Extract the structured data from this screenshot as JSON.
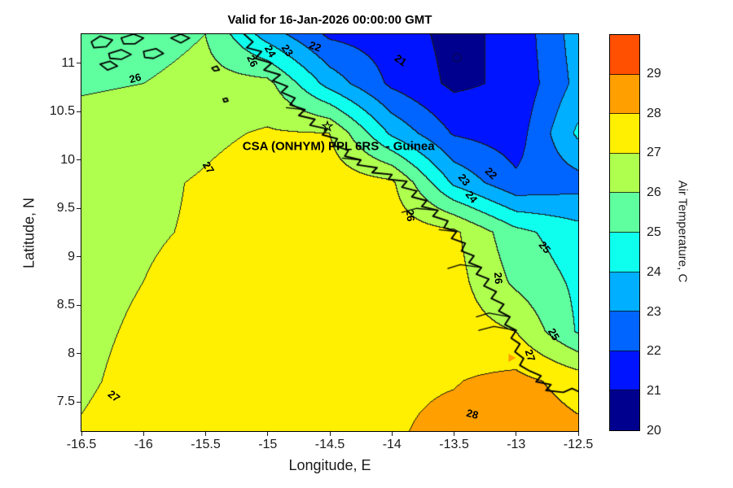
{
  "chart_data": {
    "type": "heatmap",
    "style": "filled_contour_map",
    "title": "Valid for 16-Jan-2026 00:00:00 GMT",
    "xlabel": "Longitude, E",
    "ylabel": "Latitude, N",
    "colorbar_label": "Air Temperature, C",
    "xlim": [
      -16.5,
      -12.5
    ],
    "ylim": [
      7.2,
      11.3
    ],
    "x_ticks": [
      -16.5,
      -16,
      -15.5,
      -15,
      -14.5,
      -14,
      -13.5,
      -13,
      -12.5
    ],
    "y_ticks": [
      7.5,
      8,
      8.5,
      9,
      9.5,
      10,
      10.5,
      11
    ],
    "levels": {
      "min": 20,
      "max": 30,
      "step": 1
    },
    "colorbar_ticks": [
      20,
      21,
      22,
      23,
      24,
      25,
      26,
      27,
      28,
      29
    ],
    "band_colors": [
      "#00008F",
      "#0014FF",
      "#0064FF",
      "#00AFFF",
      "#0FFFEF",
      "#5FFF9F",
      "#AFFF4F",
      "#FFEF00",
      "#FF9F00",
      "#FF4F00"
    ],
    "contour_line_color": "#1a1a1a",
    "grid": {
      "lons": [
        -16.5,
        -16.0,
        -15.5,
        -15.0,
        -14.5,
        -14.0,
        -13.5,
        -13.0,
        -12.5
      ],
      "lats": [
        11.3,
        10.7875,
        10.275,
        9.7625,
        9.25,
        8.7375,
        8.225,
        7.7125,
        7.2
      ],
      "values": [
        [
          25.5,
          25.5,
          26.0,
          23.5,
          21.8,
          21.5,
          20.7,
          21.3,
          23.5
        ],
        [
          25.9,
          26.0,
          26.4,
          26.3,
          23.6,
          21.8,
          20.8,
          21.2,
          23.3
        ],
        [
          26.3,
          26.4,
          26.8,
          27.1,
          27.0,
          23.8,
          21.9,
          21.5,
          24.2
        ],
        [
          26.6,
          26.8,
          27.1,
          27.5,
          27.6,
          27.2,
          23.8,
          22.2,
          22.6
        ],
        [
          26.7,
          26.9,
          27.1,
          27.5,
          27.7,
          27.6,
          27.2,
          25.3,
          24.4
        ],
        [
          26.8,
          27.0,
          27.3,
          27.6,
          27.7,
          27.6,
          27.4,
          25.8,
          24.8
        ],
        [
          26.85,
          27.1,
          27.4,
          27.6,
          27.7,
          27.7,
          27.5,
          27.0,
          24.9
        ],
        [
          26.9,
          27.2,
          27.5,
          27.7,
          27.8,
          27.85,
          27.95,
          28.3,
          27.6
        ],
        [
          27.05,
          27.3,
          27.5,
          27.7,
          27.85,
          27.9,
          28.25,
          28.6,
          28.2
        ]
      ]
    },
    "contour_labels": [
      {
        "v": 26,
        "lon": -16.07,
        "lat": 10.85,
        "rot": -15
      },
      {
        "v": 27,
        "lon": -15.48,
        "lat": 9.92,
        "rot": 58
      },
      {
        "v": 27,
        "lon": -16.24,
        "lat": 7.56,
        "rot": 38
      },
      {
        "v": 26,
        "lon": -15.12,
        "lat": 11.02,
        "rot": 65
      },
      {
        "v": 24,
        "lon": -14.98,
        "lat": 11.12,
        "rot": 60
      },
      {
        "v": 23,
        "lon": -14.84,
        "lat": 11.13,
        "rot": 55
      },
      {
        "v": 22,
        "lon": -14.62,
        "lat": 11.17,
        "rot": 20
      },
      {
        "v": 21,
        "lon": -13.93,
        "lat": 11.03,
        "rot": 35
      },
      {
        "v": 22,
        "lon": -13.2,
        "lat": 9.86,
        "rot": 45
      },
      {
        "v": 23,
        "lon": -13.42,
        "lat": 9.8,
        "rot": 52
      },
      {
        "v": 24,
        "lon": -13.36,
        "lat": 9.62,
        "rot": 52
      },
      {
        "v": 26,
        "lon": -13.85,
        "lat": 9.43,
        "rot": 85
      },
      {
        "v": 26,
        "lon": -13.14,
        "lat": 8.78,
        "rot": 85
      },
      {
        "v": 25,
        "lon": -12.77,
        "lat": 9.1,
        "rot": 50
      },
      {
        "v": 25,
        "lon": -12.7,
        "lat": 8.2,
        "rot": 60
      },
      {
        "v": 27,
        "lon": -12.89,
        "lat": 7.98,
        "rot": 72
      },
      {
        "v": 28,
        "lon": -13.35,
        "lat": 7.38,
        "rot": 15
      }
    ],
    "annotations": {
      "station_text": "CSA (ONHYM) PPL 6RS  - Guinea",
      "station_text_pos": {
        "lon": -14.43,
        "lat": 10.14
      },
      "star": {
        "lon": -14.52,
        "lat": 10.33
      }
    },
    "markers": [
      {
        "type": "circle",
        "lon": -13.48,
        "lat": 11.06
      },
      {
        "type": "triangle",
        "lon": -13.04,
        "lat": 7.96,
        "color": "#FF9F00"
      }
    ],
    "map": {
      "coastline": [
        [
          -15.19,
          11.3
        ],
        [
          -15.12,
          11.22
        ],
        [
          -15.17,
          11.16
        ],
        [
          -15.05,
          11.12
        ],
        [
          -15.1,
          11.05
        ],
        [
          -14.97,
          11.0
        ],
        [
          -15.03,
          10.93
        ],
        [
          -14.9,
          10.88
        ],
        [
          -14.96,
          10.82
        ],
        [
          -14.84,
          10.76
        ],
        [
          -14.89,
          10.7
        ],
        [
          -14.78,
          10.64
        ],
        [
          -14.82,
          10.57
        ],
        [
          -14.7,
          10.52
        ],
        [
          -14.75,
          10.46
        ],
        [
          -14.62,
          10.42
        ],
        [
          -14.66,
          10.36
        ],
        [
          -14.52,
          10.32
        ],
        [
          -14.56,
          10.26
        ],
        [
          -14.44,
          10.22
        ],
        [
          -14.47,
          10.15
        ],
        [
          -14.35,
          10.1
        ],
        [
          -14.38,
          10.04
        ],
        [
          -14.25,
          10.0
        ],
        [
          -14.28,
          9.95
        ],
        [
          -14.12,
          9.92
        ],
        [
          -14.16,
          9.87
        ],
        [
          -14.0,
          9.85
        ],
        [
          -14.03,
          9.8
        ],
        [
          -13.88,
          9.78
        ],
        [
          -13.92,
          9.72
        ],
        [
          -13.8,
          9.68
        ],
        [
          -13.84,
          9.62
        ],
        [
          -13.72,
          9.58
        ],
        [
          -13.76,
          9.52
        ],
        [
          -13.63,
          9.48
        ],
        [
          -13.67,
          9.42
        ],
        [
          -13.55,
          9.37
        ],
        [
          -13.58,
          9.3
        ],
        [
          -13.48,
          9.26
        ],
        [
          -13.52,
          9.19
        ],
        [
          -13.41,
          9.14
        ],
        [
          -13.44,
          9.06
        ],
        [
          -13.34,
          9.01
        ],
        [
          -13.38,
          8.94
        ],
        [
          -13.28,
          8.89
        ],
        [
          -13.32,
          8.82
        ],
        [
          -13.22,
          8.77
        ],
        [
          -13.26,
          8.7
        ],
        [
          -13.16,
          8.64
        ],
        [
          -13.2,
          8.57
        ],
        [
          -13.1,
          8.51
        ],
        [
          -13.14,
          8.44
        ],
        [
          -13.05,
          8.38
        ],
        [
          -13.09,
          8.3
        ],
        [
          -13.0,
          8.24
        ],
        [
          -13.04,
          8.16
        ],
        [
          -12.97,
          8.1
        ],
        [
          -13.01,
          8.02
        ],
        [
          -12.94,
          7.95
        ],
        [
          -12.97,
          7.88
        ],
        [
          -12.89,
          7.82
        ],
        [
          -12.8,
          7.77
        ],
        [
          -12.84,
          7.71
        ],
        [
          -12.72,
          7.68
        ],
        [
          -12.76,
          7.62
        ],
        [
          -12.62,
          7.6
        ],
        [
          -12.55,
          7.64
        ],
        [
          -12.5,
          7.61
        ]
      ],
      "rivers": [
        [
          [
            -13.63,
            9.48
          ],
          [
            -13.8,
            9.5
          ],
          [
            -13.92,
            9.46
          ]
        ],
        [
          [
            -13.28,
            8.89
          ],
          [
            -13.45,
            8.92
          ],
          [
            -13.55,
            8.88
          ]
        ],
        [
          [
            -13.0,
            8.24
          ],
          [
            -13.18,
            8.28
          ],
          [
            -13.3,
            8.24
          ]
        ],
        [
          [
            -13.05,
            8.38
          ],
          [
            -13.22,
            8.42
          ],
          [
            -13.32,
            8.38
          ]
        ],
        [
          [
            -13.48,
            9.26
          ],
          [
            -13.62,
            9.28
          ]
        ],
        [
          [
            -14.7,
            10.52
          ],
          [
            -14.85,
            10.54
          ]
        ],
        [
          [
            -14.25,
            10.0
          ],
          [
            -14.4,
            10.02
          ]
        ]
      ],
      "islands": [
        [
          [
            -16.42,
            11.22
          ],
          [
            -16.35,
            11.28
          ],
          [
            -16.25,
            11.24
          ],
          [
            -16.3,
            11.17
          ],
          [
            -16.4,
            11.16
          ]
        ],
        [
          [
            -16.18,
            11.26
          ],
          [
            -16.08,
            11.3
          ],
          [
            -16.0,
            11.26
          ],
          [
            -16.07,
            11.2
          ],
          [
            -16.16,
            11.2
          ]
        ],
        [
          [
            -16.28,
            11.1
          ],
          [
            -16.18,
            11.14
          ],
          [
            -16.1,
            11.09
          ],
          [
            -16.18,
            11.04
          ],
          [
            -16.27,
            11.05
          ]
        ],
        [
          [
            -16.0,
            11.12
          ],
          [
            -15.9,
            11.15
          ],
          [
            -15.84,
            11.1
          ],
          [
            -15.92,
            11.05
          ],
          [
            -15.99,
            11.06
          ]
        ],
        [
          [
            -15.78,
            11.26
          ],
          [
            -15.7,
            11.3
          ],
          [
            -15.63,
            11.26
          ],
          [
            -15.7,
            11.21
          ]
        ],
        [
          [
            -16.35,
            10.99
          ],
          [
            -16.27,
            11.02
          ],
          [
            -16.21,
            10.97
          ],
          [
            -16.29,
            10.93
          ]
        ],
        [
          [
            -15.45,
            10.95
          ],
          [
            -15.41,
            10.97
          ],
          [
            -15.39,
            10.93
          ],
          [
            -15.43,
            10.92
          ]
        ],
        [
          [
            -15.36,
            10.63
          ],
          [
            -15.33,
            10.64
          ],
          [
            -15.32,
            10.61
          ],
          [
            -15.35,
            10.6
          ]
        ]
      ]
    }
  }
}
